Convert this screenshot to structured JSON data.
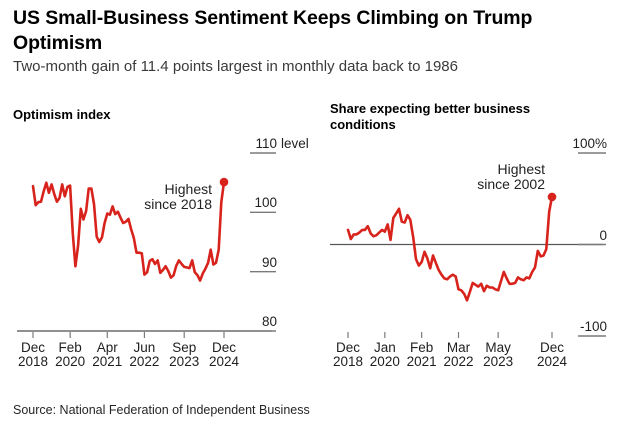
{
  "header": {
    "title": "US Small-Business Sentiment Keeps Climbing on Trump Optimism",
    "subtitle": "Two-month gain of 11.4 points largest in monthly data back to 1986"
  },
  "source": "Source: National Federation of Independent Business",
  "colors": {
    "line": "#d8231c",
    "axis": "#4d4d4d",
    "tick": "#7a7a7a",
    "text": "#1f1f1f"
  },
  "chart_data": [
    {
      "type": "line",
      "title": "Optimism index",
      "annotation": "Highest since 2018",
      "x_start": "Dec 2018",
      "x_end": "Dec 2024",
      "x_unit": "month",
      "ylim": [
        80,
        110
      ],
      "yticks": [
        {
          "label": "110",
          "suffix": "level",
          "v": 110
        },
        {
          "label": "100",
          "v": 100
        },
        {
          "label": "90",
          "v": 90
        },
        {
          "label": "80",
          "v": 80
        }
      ],
      "xticks": [
        {
          "month": "Dec",
          "year": "2018",
          "m": 0
        },
        {
          "month": "Feb",
          "year": "2020",
          "m": 14
        },
        {
          "month": "Apr",
          "year": "2021",
          "m": 28
        },
        {
          "month": "Jun",
          "year": "2022",
          "m": 42
        },
        {
          "month": "Sep",
          "year": "2023",
          "m": 57
        },
        {
          "month": "Dec",
          "year": "2024",
          "m": 72
        }
      ],
      "zero_line": false,
      "end_dot": true,
      "values": [
        104.4,
        101.2,
        101.7,
        101.8,
        103.5,
        105.0,
        103.3,
        104.7,
        103.1,
        101.8,
        102.4,
        104.7,
        102.7,
        104.3,
        104.5,
        96.4,
        90.9,
        94.4,
        100.6,
        98.8,
        100.2,
        104.0,
        104.0,
        101.4,
        95.9,
        95.0,
        95.8,
        98.2,
        99.8,
        99.6,
        101.0,
        99.7,
        100.1,
        99.1,
        98.2,
        98.4,
        98.9,
        97.1,
        95.7,
        93.2,
        93.2,
        93.1,
        89.5,
        89.9,
        91.8,
        92.1,
        91.3,
        91.9,
        89.8,
        90.3,
        90.9,
        90.1,
        89.0,
        89.4,
        91.0,
        91.9,
        91.3,
        90.8,
        90.7,
        90.6,
        91.9,
        89.9,
        89.4,
        88.5,
        89.7,
        90.5,
        91.5,
        93.7,
        91.2,
        91.5,
        93.7,
        101.7,
        105.1
      ]
    },
    {
      "type": "line",
      "title": "Share expecting better business conditions",
      "annotation": "Highest since 2002",
      "x_start": "Dec 2018",
      "x_end": "Dec 2024",
      "x_unit": "month",
      "ylim": [
        -100,
        100
      ],
      "yticks": [
        {
          "label": "100%",
          "v": 100
        },
        {
          "label": "0",
          "v": 0
        },
        {
          "label": "-100",
          "v": -100
        }
      ],
      "xticks": [
        {
          "month": "Dec",
          "year": "2018",
          "m": 0
        },
        {
          "month": "Jan",
          "year": "2020",
          "m": 13
        },
        {
          "month": "Feb",
          "year": "2021",
          "m": 26
        },
        {
          "month": "Mar",
          "year": "2022",
          "m": 39
        },
        {
          "month": "May",
          "year": "2023",
          "m": 53
        },
        {
          "month": "Dec",
          "year": "2024",
          "m": 72
        }
      ],
      "zero_line": true,
      "end_dot": true,
      "values": [
        16,
        6,
        11,
        11,
        13,
        16,
        16,
        20,
        12,
        9,
        10,
        13,
        16,
        14,
        22,
        5,
        29,
        34,
        39,
        25,
        24,
        32,
        27,
        8,
        -16,
        -23,
        -19,
        -8,
        -15,
        -26,
        -12,
        -20,
        -28,
        -33,
        -37,
        -38,
        -35,
        -33,
        -35,
        -49,
        -50,
        -54,
        -61,
        -52,
        -42,
        -44,
        -46,
        -43,
        -51,
        -45,
        -47,
        -47,
        -49,
        -50,
        -40,
        -30,
        -37,
        -43,
        -43,
        -42,
        -36,
        -38,
        -39,
        -36,
        -37,
        -30,
        -25,
        -7,
        -13,
        -12,
        -5,
        36,
        52
      ]
    }
  ]
}
